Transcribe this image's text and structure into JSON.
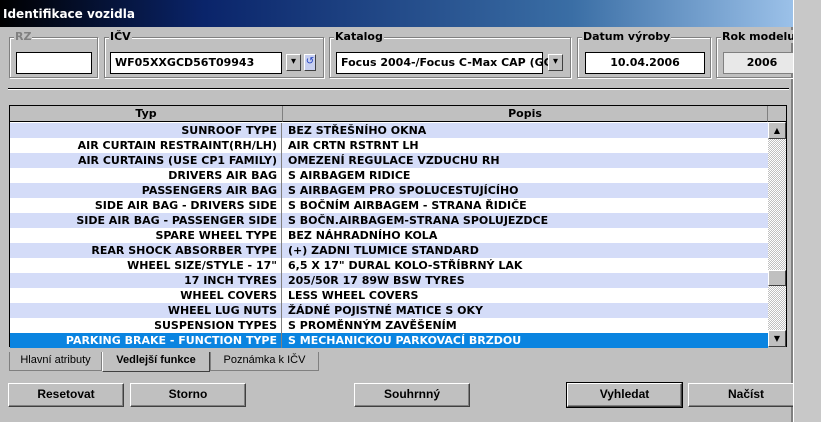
{
  "window": {
    "title": "Identifikace vozidla",
    "close_icon": "close-icon"
  },
  "fields": {
    "rz": {
      "label": "RZ",
      "value": ""
    },
    "icv": {
      "label": "IČV",
      "value": "WF05XXGCD56T09943"
    },
    "katalog": {
      "label": "Katalog",
      "value": "Focus 2004-/Focus C-Max CAP (GC"
    },
    "datum": {
      "label": "Datum výroby",
      "value": "10.04.2006"
    },
    "rok": {
      "label": "Rok modelu",
      "value": "2006"
    }
  },
  "table": {
    "columns": [
      "Typ",
      "Popis"
    ],
    "rows": [
      {
        "typ": "SUNROOF TYPE",
        "popis": "BEZ STŘEŠNÍHO OKNA"
      },
      {
        "typ": "AIR CURTAIN RESTRAINT(RH/LH)",
        "popis": "AIR CRTN RSTRNT LH"
      },
      {
        "typ": "AIR CURTAINS (USE CP1 FAMILY)",
        "popis": "OMEZENÍ REGULACE VZDUCHU RH"
      },
      {
        "typ": "DRIVERS AIR BAG",
        "popis": "S AIRBAGEM RIDICE"
      },
      {
        "typ": "PASSENGERS AIR BAG",
        "popis": "S AIRBAGEM PRO SPOLUCESTUJÍCÍHO"
      },
      {
        "typ": "SIDE AIR BAG - DRIVERS SIDE",
        "popis": "S BOČNÍM AIRBAGEM - STRANA ŘIDIČE"
      },
      {
        "typ": "SIDE AIR BAG - PASSENGER SIDE",
        "popis": "S BOČN.AIRBAGEM-STRANA SPOLUJEZDCE"
      },
      {
        "typ": "SPARE WHEEL TYPE",
        "popis": "BEZ NÁHRADNÍHO KOLA"
      },
      {
        "typ": "REAR SHOCK ABSORBER TYPE",
        "popis": "(+) ZADNI TLUMICE STANDARD"
      },
      {
        "typ": "WHEEL SIZE/STYLE - 17\"",
        "popis": "6,5 X 17\" DURAL KOLO-STŘÍBRNÝ LAK"
      },
      {
        "typ": "17 INCH TYRES",
        "popis": "205/50R 17 89W BSW TYRES"
      },
      {
        "typ": "WHEEL COVERS",
        "popis": "LESS WHEEL COVERS"
      },
      {
        "typ": "WHEEL LUG NUTS",
        "popis": "ŽÁDNÉ POJISTNÉ MATICE S OKY"
      },
      {
        "typ": "SUSPENSION TYPES",
        "popis": "S PROMĚNNÝM ZAVĚŠENÍM"
      },
      {
        "typ": "PARKING BRAKE - FUNCTION TYPE",
        "popis": "S MECHANICKOU PARKOVACÍ BRZDOU"
      }
    ],
    "selected_index": 14,
    "scroll_position_fraction": 0.75
  },
  "tabs": [
    {
      "label": "Hlavní atributy",
      "active": false
    },
    {
      "label": "Vedlejší funkce",
      "active": true
    },
    {
      "label": "Poznámka k IČV",
      "active": false
    }
  ],
  "buttons": {
    "reset": "Resetovat",
    "storno": "Storno",
    "souhrnny": "Souhrnný",
    "vyhledat": "Vyhledat",
    "nacist": "Načíst"
  },
  "colors": {
    "row_alt": "#d4dcf8",
    "selection": "#0a84e0"
  }
}
